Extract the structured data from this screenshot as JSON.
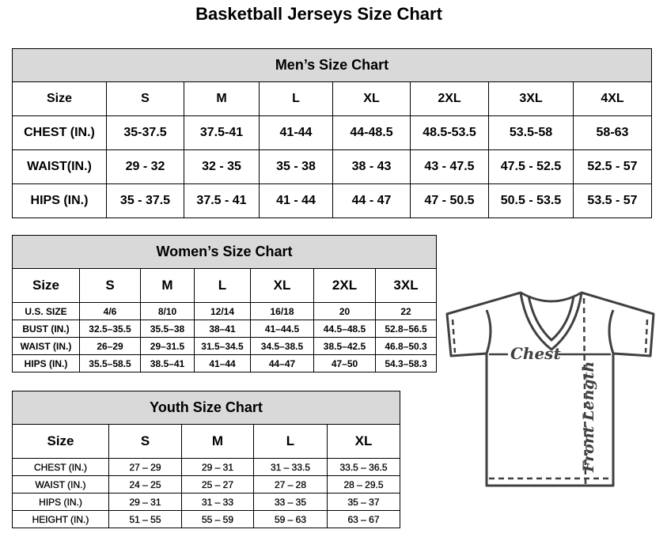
{
  "title": "Basketball Jerseys Size Chart",
  "men": {
    "title": "Men’s Size Chart",
    "header": [
      "Size",
      "S",
      "M",
      "L",
      "XL",
      "2XL",
      "3XL",
      "4XL"
    ],
    "rows": [
      [
        "CHEST (IN.)",
        "35-37.5",
        "37.5-41",
        "41-44",
        "44-48.5",
        "48.5-53.5",
        "53.5-58",
        "58-63"
      ],
      [
        "WAIST(IN.)",
        "29 - 32",
        "32 - 35",
        "35 - 38",
        "38 - 43",
        "43 - 47.5",
        "47.5 - 52.5",
        "52.5 - 57"
      ],
      [
        "HIPS (IN.)",
        "35 - 37.5",
        "37.5 - 41",
        "41 - 44",
        "44 - 47",
        "47 - 50.5",
        "50.5 - 53.5",
        "53.5 - 57"
      ]
    ]
  },
  "women": {
    "title": "Women’s Size Chart",
    "header": [
      "Size",
      "S",
      "M",
      "L",
      "XL",
      "2XL",
      "3XL"
    ],
    "rows": [
      [
        "U.S.  SIZE",
        "4/6",
        "8/10",
        "12/14",
        "16/18",
        "20",
        "22"
      ],
      [
        "BUST  (IN.)",
        "32.5–35.5",
        "35.5–38",
        "38–41",
        "41–44.5",
        "44.5–48.5",
        "52.8–56.5"
      ],
      [
        "WAIST  (IN.)",
        "26–29",
        "29–31.5",
        "31.5–34.5",
        "34.5–38.5",
        "38.5–42.5",
        "46.8–50.3"
      ],
      [
        "HIPS  (IN.)",
        "35.5–58.5",
        "38.5–41",
        "41–44",
        "44–47",
        "47–50",
        "54.3–58.3"
      ]
    ]
  },
  "youth": {
    "title": "Youth Size Chart",
    "header": [
      "Size",
      "S",
      "M",
      "L",
      "XL"
    ],
    "rows": [
      [
        "CHEST  (IN.)",
        "27  –  29",
        "29  –  31",
        "31  –  33.5",
        "33.5  –  36.5"
      ],
      [
        "WAIST  (IN.)",
        "24  –  25",
        "25  –  27",
        "27  –  28",
        "28  –  29.5"
      ],
      [
        "HIPS  (IN.)",
        "29  –  31",
        "31  –  33",
        "33  –  35",
        "35  –  37"
      ],
      [
        "HEIGHT  (IN.)",
        "51  –  55",
        "55  –  59",
        "59  –  63",
        "63  –  67"
      ]
    ]
  },
  "diagram": {
    "chest_label": "Chest",
    "length_label": "Front Length",
    "line_color": "#404040"
  }
}
